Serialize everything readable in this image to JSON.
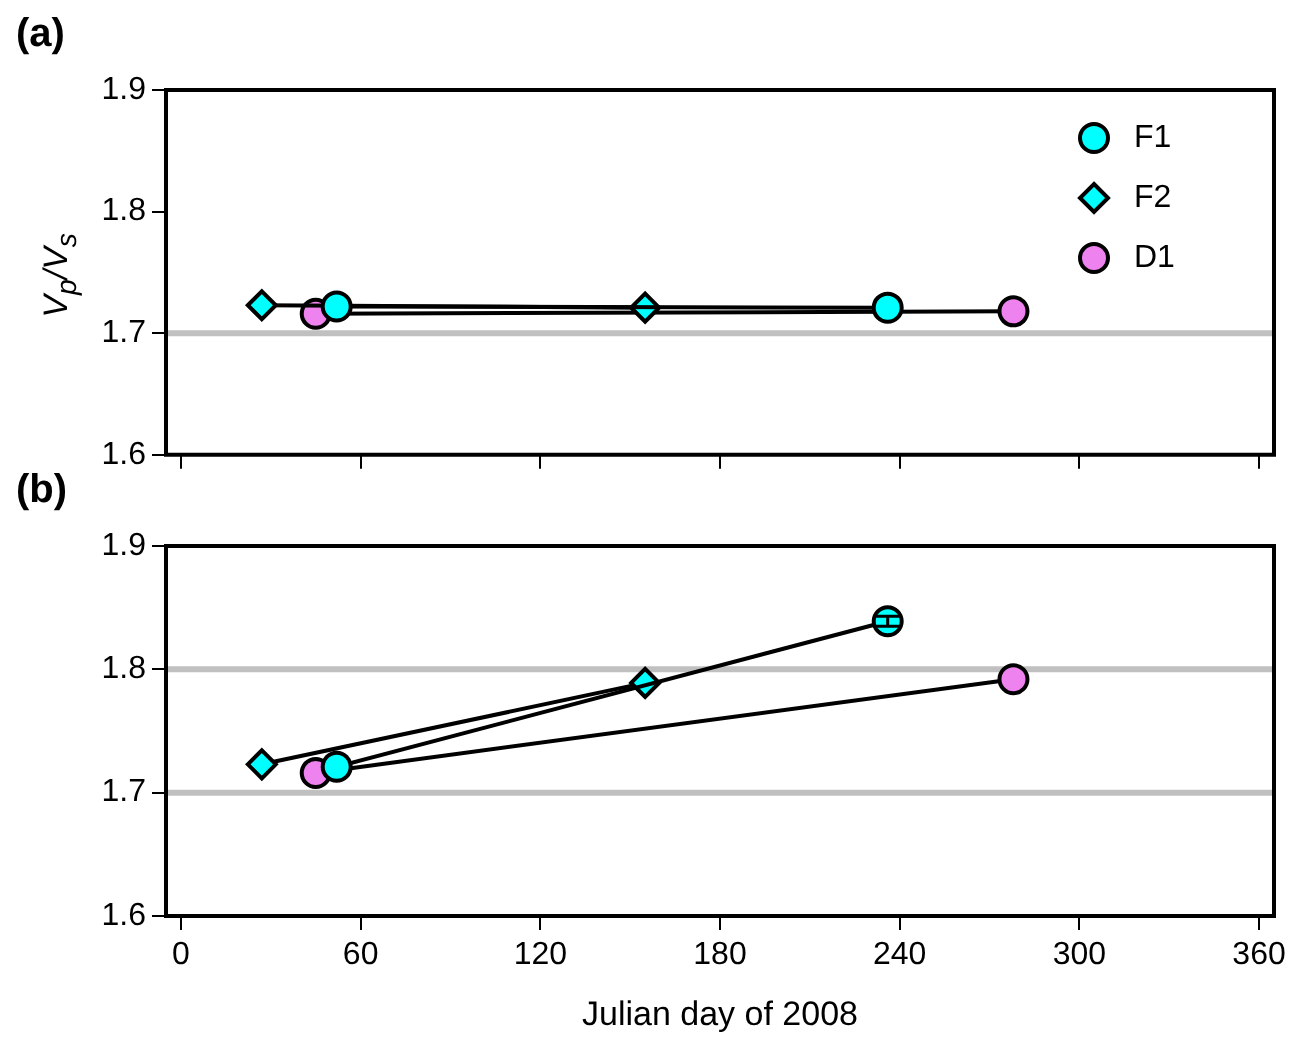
{
  "chart_data": [
    {
      "type": "line",
      "title": "(a)",
      "ylabel": "V$_{p}$/V$_{s}$",
      "xlim": [
        -5,
        365
      ],
      "xticks": [
        0,
        60,
        120,
        180,
        240,
        300,
        360
      ],
      "ylim": [
        1.6,
        1.9
      ],
      "yticks": [
        1.6,
        1.7,
        1.8,
        1.9
      ],
      "tick_labels": "y",
      "grid": false,
      "legend": "top right",
      "ref_lines": [
        {
          "axis": "y",
          "value": 1.7,
          "color": "#c0c0c0"
        }
      ],
      "series": [
        {
          "name": "F1",
          "color": "#00ffff",
          "marker": "circle",
          "x": [
            52,
            236
          ],
          "values": [
            1.722,
            1.721
          ]
        },
        {
          "name": "F2",
          "color": "#00ffff",
          "marker": "diamond",
          "x": [
            27,
            155
          ],
          "values": [
            1.723,
            1.721
          ]
        },
        {
          "name": "D1",
          "color": "#ee82ee",
          "marker": "circle",
          "x": [
            45,
            278
          ],
          "values": [
            1.716,
            1.718
          ]
        }
      ]
    },
    {
      "type": "line",
      "title": "(b)",
      "xlabel": "Julian day of 2008",
      "xlim": [
        -5,
        365
      ],
      "xticks": [
        0,
        60,
        120,
        180,
        240,
        300,
        360
      ],
      "ylim": [
        1.6,
        1.9
      ],
      "yticks": [
        1.6,
        1.7,
        1.8,
        1.9
      ],
      "grid": false,
      "ref_lines": [
        {
          "axis": "y",
          "value": 1.7,
          "color": "#c0c0c0"
        },
        {
          "axis": "y",
          "value": 1.8,
          "color": "#c0c0c0"
        }
      ],
      "series": [
        {
          "color": "#00ffff",
          "marker": "circle",
          "x": [
            52,
            236
          ],
          "values": [
            1.721,
            1.839
          ],
          "errors": [
            null,
            0.004
          ]
        },
        {
          "color": "#00ffff",
          "marker": "diamond",
          "x": [
            27,
            155
          ],
          "values": [
            1.723,
            1.789
          ]
        },
        {
          "color": "#ee82ee",
          "marker": "circle",
          "x": [
            45,
            278
          ],
          "values": [
            1.716,
            1.792
          ]
        }
      ]
    }
  ]
}
